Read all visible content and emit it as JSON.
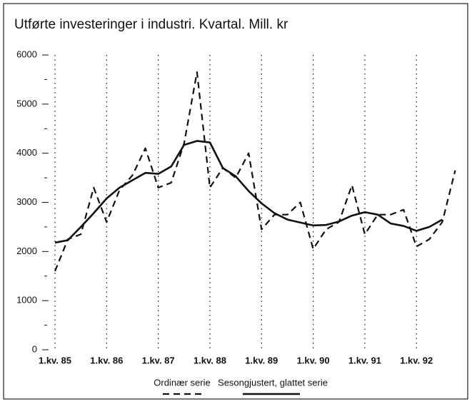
{
  "chart_data": {
    "type": "line",
    "title": "Utførte investeringer i industri. Kvartal. Mill. kr",
    "categories": [
      "1.kv. 85",
      null,
      null,
      null,
      "1.kv. 86",
      null,
      null,
      null,
      "1.kv. 87",
      null,
      null,
      null,
      "1.kv. 88",
      null,
      null,
      null,
      "1.kv. 89",
      null,
      null,
      null,
      "1.kv. 90",
      null,
      null,
      null,
      "1.kv. 91",
      null,
      null,
      null,
      "1.kv. 92",
      null,
      null,
      null
    ],
    "series": [
      {
        "name": "Ordinær serie",
        "color": "#111111",
        "dash": true,
        "values": [
          1600,
          2250,
          2350,
          3300,
          2600,
          3250,
          3550,
          4100,
          3300,
          3400,
          4200,
          5650,
          3300,
          3700,
          3500,
          4000,
          2450,
          2750,
          2750,
          3000,
          2050,
          2450,
          2600,
          3350,
          2350,
          2750,
          2750,
          2850,
          2100,
          2250,
          2600,
          3650
        ]
      },
      {
        "name": "Sesongjustert, glattet serie",
        "color": "#111111",
        "dash": false,
        "values": [
          2180,
          2230,
          2500,
          2780,
          3080,
          3300,
          3450,
          3600,
          3580,
          3730,
          4170,
          4250,
          4220,
          3700,
          3530,
          3230,
          2980,
          2780,
          2650,
          2590,
          2530,
          2540,
          2610,
          2730,
          2800,
          2750,
          2570,
          2520,
          2420,
          2500,
          2650,
          null
        ]
      }
    ],
    "ylim": [
      0,
      6000
    ],
    "yticks": [
      0,
      1000,
      2000,
      3000,
      4000,
      5000,
      6000
    ],
    "yminorticks": [
      500,
      1500,
      2500,
      3500,
      4500,
      5500
    ],
    "grid": true
  }
}
